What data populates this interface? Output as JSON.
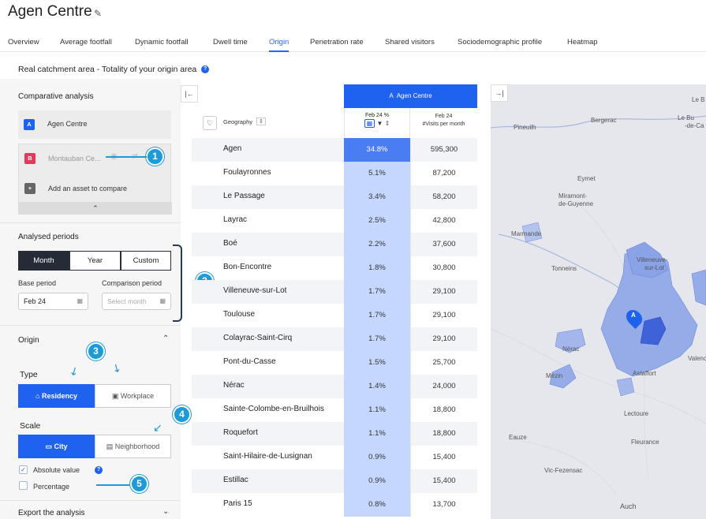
{
  "header": {
    "title": "Agen Centre"
  },
  "tabs": [
    "Overview",
    "Average footfall",
    "Dynamic footfall",
    "Dwell time",
    "Origin",
    "Penetration rate",
    "Shared visitors",
    "Sociodemographic profile",
    "Heatmap"
  ],
  "active_tab": "Origin",
  "subtitle": "Real catchment area - Totality of your origin area",
  "comparative": {
    "title": "Comparative analysis",
    "asset_a": {
      "badge": "A",
      "name": "Agen Centre",
      "color": "#1f62f0"
    },
    "asset_b": {
      "badge": "B",
      "name": "Montauban Ce...",
      "color": "#e8375a"
    },
    "add_label": "Add an asset to compare"
  },
  "periods": {
    "title": "Analysed periods",
    "options": [
      "Month",
      "Year",
      "Custom"
    ],
    "selected": "Month",
    "base_label": "Base period",
    "base_value": "Feb 24",
    "comparison_label": "Comparison period",
    "comparison_placeholder": "Select month"
  },
  "origin": {
    "title": "Origin",
    "type_label": "Type",
    "type_options": [
      "Residency",
      "Workplace"
    ],
    "type_selected": "Residency",
    "scale_label": "Scale",
    "scale_options": [
      "City",
      "Neighborhood"
    ],
    "scale_selected": "City",
    "absolute_label": "Absolute value",
    "percentage_label": "Percentage"
  },
  "export_label": "Export the analysis",
  "annotations": [
    "1",
    "2",
    "3",
    "4",
    "5"
  ],
  "table": {
    "geo_header": "Geography",
    "asset_header": "Agen Centre",
    "asset_badge": "A",
    "pct_header": "Feb 24 %",
    "visits_header_1": "Feb 24",
    "visits_header_2": "#Visits per month",
    "rows": [
      {
        "geo": "Agen",
        "pct": "34.8%",
        "visits": "595,300"
      },
      {
        "geo": "Foulayronnes",
        "pct": "5.1%",
        "visits": "87,200"
      },
      {
        "geo": "Le Passage",
        "pct": "3.4%",
        "visits": "58,200"
      },
      {
        "geo": "Layrac",
        "pct": "2.5%",
        "visits": "42,800"
      },
      {
        "geo": "Boé",
        "pct": "2.2%",
        "visits": "37,600"
      },
      {
        "geo": "Bon-Encontre",
        "pct": "1.8%",
        "visits": "30,800"
      },
      {
        "geo": "Villeneuve-sur-Lot",
        "pct": "1.7%",
        "visits": "29,100"
      },
      {
        "geo": "Toulouse",
        "pct": "1.7%",
        "visits": "29,100"
      },
      {
        "geo": "Colayrac-Saint-Cirq",
        "pct": "1.7%",
        "visits": "29,100"
      },
      {
        "geo": "Pont-du-Casse",
        "pct": "1.5%",
        "visits": "25,700"
      },
      {
        "geo": "Nérac",
        "pct": "1.4%",
        "visits": "24,000"
      },
      {
        "geo": "Sainte-Colombe-en-Bruilhois",
        "pct": "1.1%",
        "visits": "18,800"
      },
      {
        "geo": "Roquefort",
        "pct": "1.1%",
        "visits": "18,800"
      },
      {
        "geo": "Saint-Hilaire-de-Lusignan",
        "pct": "0.9%",
        "visits": "15,400"
      },
      {
        "geo": "Estillac",
        "pct": "0.9%",
        "visits": "15,400"
      },
      {
        "geo": "Paris 15",
        "pct": "0.8%",
        "visits": "13,700"
      }
    ]
  },
  "map": {
    "labels": [
      "Le B",
      "Le Bu",
      "-de-Ca",
      "Bergerac",
      "Pineuilh",
      "Eymet",
      "Miramont-",
      "de-Guyenne",
      "Marmande",
      "Villeneuve-",
      "sur-Lot",
      "Tonneins",
      "Nérac",
      "Mézin",
      "Astaffort",
      "Valenc",
      "Lectoure",
      "Eauze",
      "Fleurance",
      "Vic-Fezensac",
      "Auch"
    ],
    "pin": "A"
  }
}
